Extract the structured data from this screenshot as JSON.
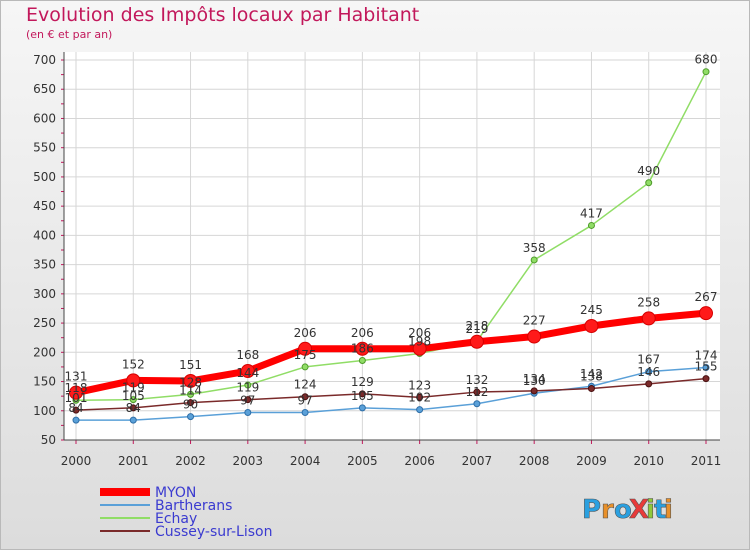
{
  "chart_data": {
    "type": "line",
    "title": "Evolution des Impôts locaux par Habitant",
    "subtitle": "(en € et par an)",
    "xlabel": "",
    "ylabel": "",
    "ylim": [
      50,
      700
    ],
    "yticks": [
      50,
      100,
      150,
      200,
      250,
      300,
      350,
      400,
      450,
      500,
      550,
      600,
      650,
      700
    ],
    "categories": [
      "2000",
      "2001",
      "2002",
      "2003",
      "2004",
      "2005",
      "2006",
      "2007",
      "2008",
      "2009",
      "2010",
      "2011"
    ],
    "series": [
      {
        "name": "MYON",
        "color": "#ff0000",
        "values": [
          131,
          152,
          151,
          168,
          206,
          206,
          206,
          218,
          227,
          245,
          258,
          267
        ],
        "labels": [
          "131",
          "152",
          "151",
          "168",
          "206",
          "206",
          "206",
          "218",
          "227",
          "245",
          "258",
          "267"
        ]
      },
      {
        "name": "Bartherans",
        "color": "#5aa0d8",
        "values": [
          84,
          84,
          90,
          97,
          97,
          105,
          102,
          112,
          130,
          142,
          167,
          174
        ],
        "labels": [
          "84",
          "84",
          "90",
          "97",
          "97",
          "105",
          "102",
          "112",
          "130",
          "142",
          "167",
          "174"
        ]
      },
      {
        "name": "Echay",
        "color": "#90dd66",
        "values": [
          118,
          119,
          128,
          144,
          175,
          186,
          198,
          219,
          358,
          417,
          490,
          680
        ],
        "labels": [
          "118",
          "119",
          "128",
          "144",
          "175",
          "186",
          "198",
          "219",
          "358",
          "417",
          "490",
          "680"
        ]
      },
      {
        "name": "Cussey-sur-Lison",
        "color": "#7a2a2a",
        "values": [
          101,
          105,
          114,
          119,
          124,
          129,
          123,
          132,
          134,
          138,
          146,
          155
        ],
        "labels": [
          "101",
          "105",
          "114",
          "119",
          "124",
          "129",
          "123",
          "132",
          "134",
          "138",
          "146",
          "155"
        ]
      }
    ],
    "legend_position": "bottom-left"
  },
  "logo": {
    "text": "ProXiti",
    "letters": [
      "P",
      "r",
      "o",
      "X",
      "i",
      "t",
      "i"
    ],
    "colors": [
      "#2aa0e0",
      "#e8902a",
      "#2aa0e0",
      "#e83a3a",
      "#90c83a",
      "#2aa0e0",
      "#e8902a"
    ]
  }
}
